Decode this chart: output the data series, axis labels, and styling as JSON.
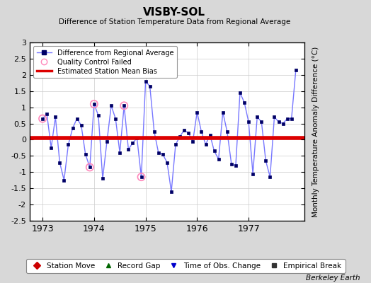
{
  "title": "VISBY-SOL",
  "subtitle": "Difference of Station Temperature Data from Regional Average",
  "ylabel": "Monthly Temperature Anomaly Difference (°C)",
  "background_color": "#d8d8d8",
  "plot_bg_color": "#ffffff",
  "xlim": [
    1972.75,
    1978.08
  ],
  "ylim": [
    -2.5,
    3.0
  ],
  "yticks": [
    -2.5,
    -2,
    -1.5,
    -1,
    -0.5,
    0,
    0.5,
    1,
    1.5,
    2,
    2.5,
    3
  ],
  "ytick_labels": [
    "-2.5",
    "-2",
    "-1.5",
    "-1",
    "-0.5",
    "0",
    "0.5",
    "1",
    "1.5",
    "2",
    "2.5",
    "3"
  ],
  "xticks": [
    1973,
    1974,
    1975,
    1976,
    1977
  ],
  "bias_value": 0.05,
  "line_color": "#7777ff",
  "marker_color": "#000066",
  "bias_color": "#dd0000",
  "qc_color": "#ff88bb",
  "months": [
    1973.0,
    1973.083,
    1973.167,
    1973.25,
    1973.333,
    1973.417,
    1973.5,
    1973.583,
    1973.667,
    1973.75,
    1973.833,
    1973.917,
    1974.0,
    1974.083,
    1974.167,
    1974.25,
    1974.333,
    1974.417,
    1974.5,
    1974.583,
    1974.667,
    1974.75,
    1974.833,
    1974.917,
    1975.0,
    1975.083,
    1975.167,
    1975.25,
    1975.333,
    1975.417,
    1975.5,
    1975.583,
    1975.667,
    1975.75,
    1975.833,
    1975.917,
    1976.0,
    1976.083,
    1976.167,
    1976.25,
    1976.333,
    1976.417,
    1976.5,
    1976.583,
    1976.667,
    1976.75,
    1976.833,
    1976.917,
    1977.0,
    1977.083,
    1977.167,
    1977.25,
    1977.333,
    1977.417,
    1977.5,
    1977.583,
    1977.667,
    1977.75,
    1977.833,
    1977.917
  ],
  "values": [
    0.65,
    0.8,
    -0.25,
    0.7,
    -0.7,
    -1.25,
    -0.15,
    0.35,
    0.65,
    0.45,
    -0.45,
    -0.85,
    1.1,
    0.75,
    -1.2,
    -0.05,
    1.05,
    0.65,
    -0.4,
    1.05,
    -0.3,
    -0.1,
    0.05,
    -1.15,
    1.8,
    1.65,
    0.25,
    -0.4,
    -0.45,
    -0.7,
    -1.6,
    -0.15,
    0.1,
    0.3,
    0.2,
    -0.05,
    0.85,
    0.25,
    -0.15,
    0.15,
    -0.35,
    -0.6,
    0.85,
    0.25,
    -0.75,
    -0.8,
    1.45,
    1.15,
    0.55,
    -1.05,
    0.7,
    0.55,
    -0.65,
    -1.15,
    0.7,
    0.55,
    0.5,
    0.65,
    0.65,
    2.15
  ],
  "qc_failed_indices": [
    0,
    11,
    12,
    19,
    23
  ],
  "gridline_color": "#cccccc",
  "footer_text": "Berkeley Earth"
}
